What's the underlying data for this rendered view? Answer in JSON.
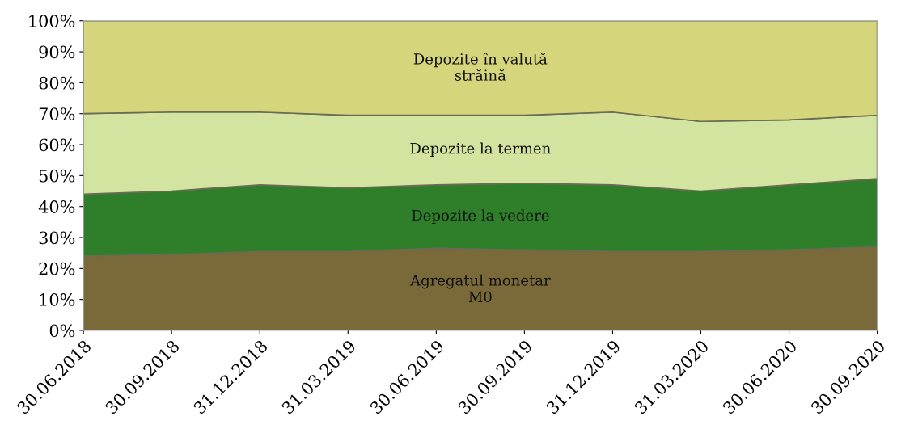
{
  "chart_data": {
    "type": "area",
    "stacked": true,
    "categories": [
      "30.06.2018",
      "30.09.2018",
      "31.12.2018",
      "31.03.2019",
      "30.06.2019",
      "30.09.2019",
      "31.12.2019",
      "31.03.2020",
      "30.06.2020",
      "30.09.2020"
    ],
    "series": [
      {
        "name": "Agregatul monetar\nM0",
        "color": "#7a6a3a",
        "values": [
          24,
          24.5,
          25.5,
          25.5,
          26.5,
          26,
          25.5,
          25.5,
          26,
          27
        ]
      },
      {
        "name": "Depozite la vedere",
        "color": "#2f7f2a",
        "values": [
          20,
          20.5,
          21.5,
          20.5,
          20.5,
          21.5,
          21.5,
          19.5,
          21,
          22
        ]
      },
      {
        "name": "Depozite la termen",
        "color": "#d3e3a0",
        "values": [
          26,
          25.5,
          23.5,
          23.5,
          22.5,
          22,
          23.5,
          22.5,
          21,
          20.5
        ]
      },
      {
        "name": "Depozite în valută\nstrăină",
        "color": "#d5d57c",
        "values": [
          30,
          29.5,
          29.5,
          30.5,
          30.5,
          30.5,
          29.5,
          32.5,
          32,
          30.5
        ]
      }
    ],
    "ylim": [
      0,
      100
    ],
    "yticks": [
      {
        "value": 0,
        "label": "0%"
      },
      {
        "value": 10,
        "label": "10%"
      },
      {
        "value": 20,
        "label": "20%"
      },
      {
        "value": 30,
        "label": "30%"
      },
      {
        "value": 40,
        "label": "40%"
      },
      {
        "value": 50,
        "label": "50%"
      },
      {
        "value": 60,
        "label": "60%"
      },
      {
        "value": 70,
        "label": "70%"
      },
      {
        "value": 80,
        "label": "80%"
      },
      {
        "value": 90,
        "label": "90%"
      },
      {
        "value": 100,
        "label": "100%"
      }
    ],
    "grid": false,
    "legend": false
  }
}
